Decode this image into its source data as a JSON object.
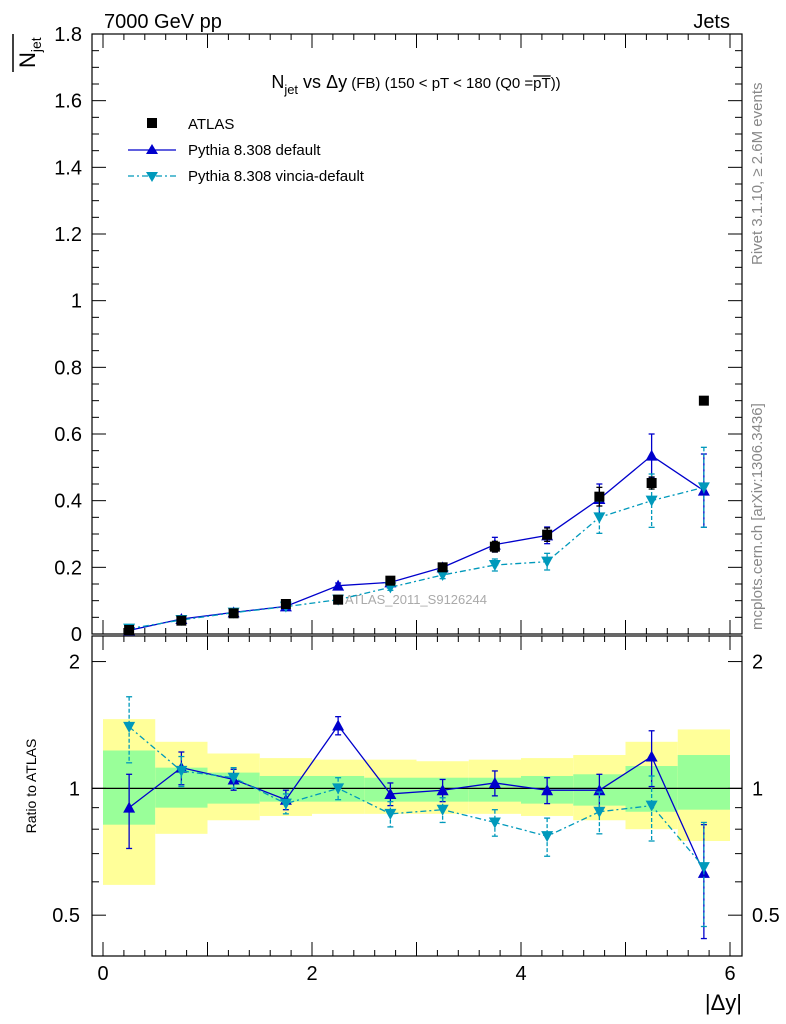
{
  "header": {
    "left": "7000 GeV pp",
    "right": "Jets"
  },
  "side_labels": {
    "rivet": "Rivet 3.1.10, ≥ 2.6M events",
    "mcplots": "mcplots.cern.ch [arXiv:1306.3436]"
  },
  "watermark": "ATLAS_2011_S9126244",
  "colors": {
    "data": "#000000",
    "default": "#0000cc",
    "vincia": "#0099bb",
    "band_inner": "#99ff99",
    "band_outer": "#ffff99"
  },
  "chart_data": [
    {
      "type": "scatter",
      "title_parts": {
        "n": "N",
        "n_sub": "jet",
        "vs": " vs ",
        "dy": "Δy",
        "fb": " (FB)",
        "cut": " (150 < pT < 180 (Q0 =",
        "pt": "pT",
        "close": "))"
      },
      "ylabel_parts": {
        "n": "N",
        "sub": "jet"
      },
      "xlim": [
        0,
        6
      ],
      "ylim": [
        0,
        1.8
      ],
      "yticks": [
        0,
        0.2,
        0.4,
        0.6,
        0.8,
        1,
        1.2,
        1.4,
        1.6,
        1.8
      ],
      "ytick_labels": [
        "0",
        "0.2",
        "0.4",
        "0.6",
        "0.8",
        "1",
        "1.2",
        "1.4",
        "1.6",
        "1.8"
      ],
      "x": [
        0.25,
        0.75,
        1.25,
        1.75,
        2.25,
        2.75,
        3.25,
        3.75,
        4.25,
        4.75,
        5.25,
        5.75
      ],
      "series": [
        {
          "name": "ATLAS",
          "style": "data",
          "values": [
            0.012,
            0.04,
            0.062,
            0.09,
            0.103,
            0.16,
            0.2,
            0.262,
            0.298,
            0.412,
            0.453,
            0.7
          ],
          "errors": [
            0.003,
            0.004,
            0.005,
            0.007,
            0.009,
            0.01,
            0.012,
            0.016,
            0.02,
            0.028,
            0.018,
            0.012
          ]
        },
        {
          "name": "Pythia 8.308 default",
          "style": "default",
          "values": [
            0.011,
            0.045,
            0.065,
            0.083,
            0.145,
            0.155,
            0.2,
            0.268,
            0.296,
            0.405,
            0.535,
            0.43
          ],
          "errors": [
            0.002,
            0.003,
            0.004,
            0.005,
            0.008,
            0.009,
            0.011,
            0.022,
            0.025,
            0.045,
            0.065,
            0.11
          ]
        },
        {
          "name": "Pythia 8.308 vincia-default",
          "style": "vincia",
          "values": [
            0.016,
            0.042,
            0.064,
            0.082,
            0.103,
            0.14,
            0.177,
            0.207,
            0.217,
            0.35,
            0.4,
            0.44
          ],
          "errors": [
            0.003,
            0.004,
            0.004,
            0.005,
            0.008,
            0.009,
            0.011,
            0.018,
            0.025,
            0.048,
            0.08,
            0.12
          ]
        }
      ]
    },
    {
      "type": "scatter",
      "ylabel": "Ratio to ATLAS",
      "xlabel": "|Δy|",
      "xlim": [
        0,
        6
      ],
      "ylim": [
        0.4,
        2.3
      ],
      "log_y": true,
      "xticks": [
        0,
        2,
        4,
        6
      ],
      "xtick_labels": [
        "0",
        "2",
        "4",
        "6"
      ],
      "yticks": [
        0.5,
        1,
        2
      ],
      "ytick_labels": [
        "0.5",
        "1",
        "2"
      ],
      "x": [
        0.25,
        0.75,
        1.25,
        1.75,
        2.25,
        2.75,
        3.25,
        3.75,
        4.25,
        4.75,
        5.25,
        5.75
      ],
      "band_edges": [
        0,
        0.5,
        1,
        1.5,
        2,
        2.5,
        3,
        3.5,
        4,
        4.5,
        5,
        5.5,
        6
      ],
      "band_inner": [
        [
          0.82,
          1.23
        ],
        [
          0.9,
          1.12
        ],
        [
          0.92,
          1.09
        ],
        [
          0.93,
          1.07
        ],
        [
          0.93,
          1.07
        ],
        [
          0.93,
          1.06
        ],
        [
          0.93,
          1.06
        ],
        [
          0.93,
          1.06
        ],
        [
          0.92,
          1.07
        ],
        [
          0.91,
          1.08
        ],
        [
          0.88,
          1.13
        ],
        [
          0.89,
          1.2
        ]
      ],
      "band_outer": [
        [
          0.59,
          1.46
        ],
        [
          0.78,
          1.29
        ],
        [
          0.84,
          1.21
        ],
        [
          0.86,
          1.18
        ],
        [
          0.87,
          1.17
        ],
        [
          0.87,
          1.17
        ],
        [
          0.87,
          1.16
        ],
        [
          0.87,
          1.17
        ],
        [
          0.86,
          1.18
        ],
        [
          0.84,
          1.2
        ],
        [
          0.8,
          1.29
        ],
        [
          0.75,
          1.38
        ]
      ],
      "series": [
        {
          "name": "Pythia 8.308 default",
          "style": "default",
          "values": [
            0.9,
            1.12,
            1.05,
            0.94,
            1.41,
            0.97,
            0.99,
            1.03,
            0.99,
            0.99,
            1.19,
            0.63
          ],
          "errors": [
            0.18,
            0.1,
            0.06,
            0.05,
            0.07,
            0.06,
            0.06,
            0.07,
            0.07,
            0.09,
            0.18,
            0.19
          ]
        },
        {
          "name": "Pythia 8.308 vincia-default",
          "style": "vincia",
          "values": [
            1.4,
            1.1,
            1.06,
            0.92,
            1.0,
            0.87,
            0.89,
            0.83,
            0.77,
            0.88,
            0.91,
            0.65
          ],
          "errors": [
            0.25,
            0.09,
            0.06,
            0.05,
            0.06,
            0.06,
            0.06,
            0.06,
            0.08,
            0.1,
            0.16,
            0.18
          ]
        }
      ]
    }
  ]
}
